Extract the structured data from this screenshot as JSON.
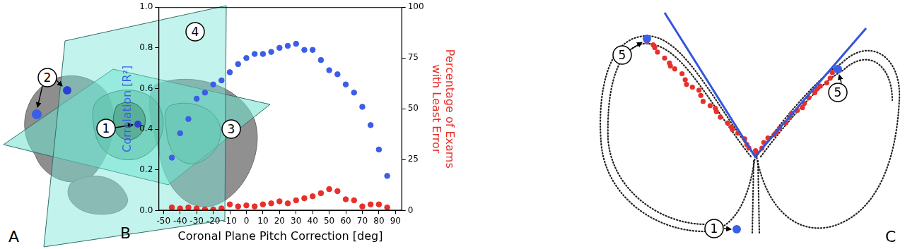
{
  "chart_data": {
    "type": "scatter",
    "xlabel": "Coronal Plane Pitch Correction [deg]",
    "x": [
      -45,
      -40,
      -35,
      -30,
      -25,
      -20,
      -15,
      -10,
      -5,
      0,
      5,
      10,
      15,
      20,
      25,
      30,
      35,
      40,
      45,
      50,
      55,
      60,
      65,
      70,
      75,
      80,
      85
    ],
    "xlim": [
      -53,
      94
    ],
    "xticks": [
      -50,
      -40,
      -30,
      -20,
      -10,
      0,
      10,
      20,
      30,
      40,
      50,
      60,
      70,
      80,
      90
    ],
    "ylim": [
      0,
      1
    ],
    "yticks": [
      {
        "value": 0,
        "label": "0.0"
      },
      0.2,
      0.4,
      0.6,
      0.8,
      {
        "value": 1,
        "label": "1.0"
      }
    ],
    "y2lim": [
      0,
      100
    ],
    "y2ticks": [
      0,
      25,
      50,
      75,
      100
    ],
    "grid": false,
    "marker": "circle",
    "series": [
      {
        "name": "Correlation [R²]",
        "color": "#3b5ee6",
        "values": [
          0.26,
          0.38,
          0.45,
          0.55,
          0.58,
          0.62,
          0.64,
          0.68,
          0.72,
          0.75,
          0.77,
          0.77,
          0.78,
          0.8,
          0.81,
          0.82,
          0.79,
          0.79,
          0.74,
          0.69,
          0.67,
          0.62,
          0.58,
          0.51,
          0.42,
          0.3,
          0.17
        ]
      },
      {
        "name": "Percentage of Exams with Least Error",
        "color": "#e8302a",
        "axis": "y2",
        "values": [
          1.5,
          1,
          1.5,
          1,
          0.5,
          0.5,
          1,
          3,
          2,
          2.5,
          2,
          3,
          3.5,
          4.5,
          3.5,
          5,
          6,
          7,
          8.5,
          10.5,
          9.5,
          5.5,
          5,
          2,
          3,
          3,
          1.5
        ]
      }
    ]
  },
  "figure": {
    "panel_labels": [
      "A",
      "B",
      "C"
    ],
    "panel_a_callouts": [
      "1",
      "2",
      "3",
      "4"
    ],
    "panel_c_callouts": [
      "5",
      "5",
      "1"
    ]
  }
}
